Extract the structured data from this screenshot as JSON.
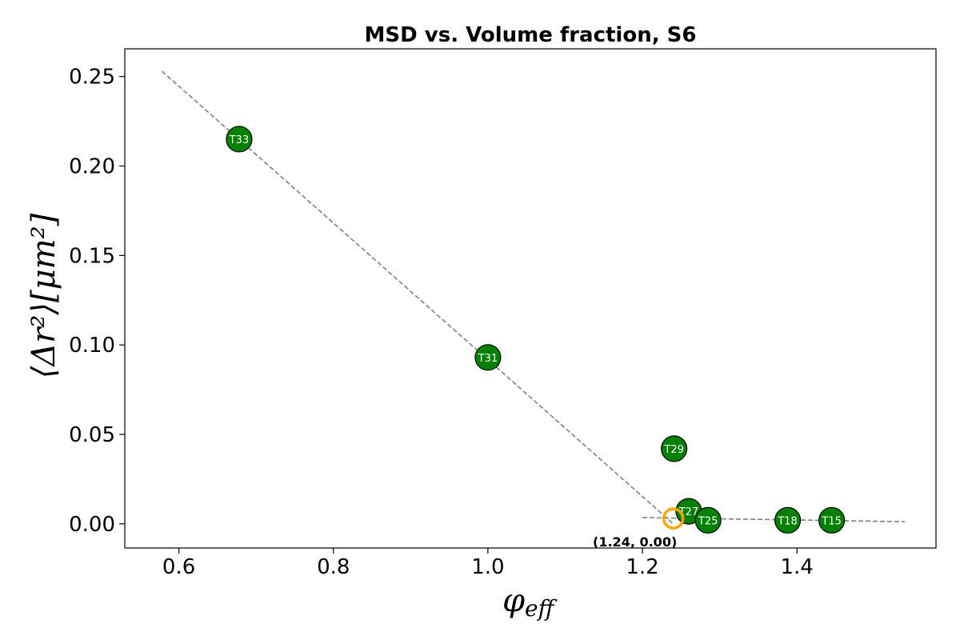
{
  "chart_data": {
    "type": "scatter",
    "title": "MSD vs. Volume fraction, S6",
    "xlabel": "φ",
    "xlabel_sub": "eff",
    "ylabel": "⟨Δr²⟩[μm²]",
    "xlim": [
      0.53,
      1.58
    ],
    "ylim": [
      -0.0135,
      0.2655
    ],
    "xticks": [
      0.6,
      0.8,
      1.0,
      1.2,
      1.4
    ],
    "xtick_labels": [
      "0.6",
      "0.8",
      "1.0",
      "1.2",
      "1.4"
    ],
    "yticks": [
      0.0,
      0.05,
      0.1,
      0.15,
      0.2,
      0.25
    ],
    "ytick_labels": [
      "0.00",
      "0.05",
      "0.10",
      "0.15",
      "0.20",
      "0.25"
    ],
    "grid": false,
    "series": [
      {
        "marker_color": "#008000",
        "points": [
          {
            "label": "T33",
            "x": 0.678,
            "y": 0.215
          },
          {
            "label": "T31",
            "x": 1.0,
            "y": 0.093
          },
          {
            "label": "T29",
            "x": 1.241,
            "y": 0.042
          },
          {
            "label": "T27",
            "x": 1.26,
            "y": 0.007
          },
          {
            "label": "T25",
            "x": 1.285,
            "y": 0.002
          },
          {
            "label": "T18",
            "x": 1.388,
            "y": 0.002
          },
          {
            "label": "T15",
            "x": 1.445,
            "y": 0.002
          }
        ]
      }
    ],
    "fit_lines": [
      {
        "color": "#808080",
        "style": "dashed",
        "x": [
          0.578,
          1.24
        ],
        "y": [
          0.253,
          0.0
        ]
      },
      {
        "color": "#808080",
        "style": "dashed",
        "x": [
          1.2,
          1.54
        ],
        "y": [
          0.0035,
          0.0012
        ]
      }
    ],
    "intersection": {
      "x": 1.24,
      "y": 0.003,
      "color": "#FFA500",
      "annotation": "(1.24, 0.00)"
    }
  }
}
